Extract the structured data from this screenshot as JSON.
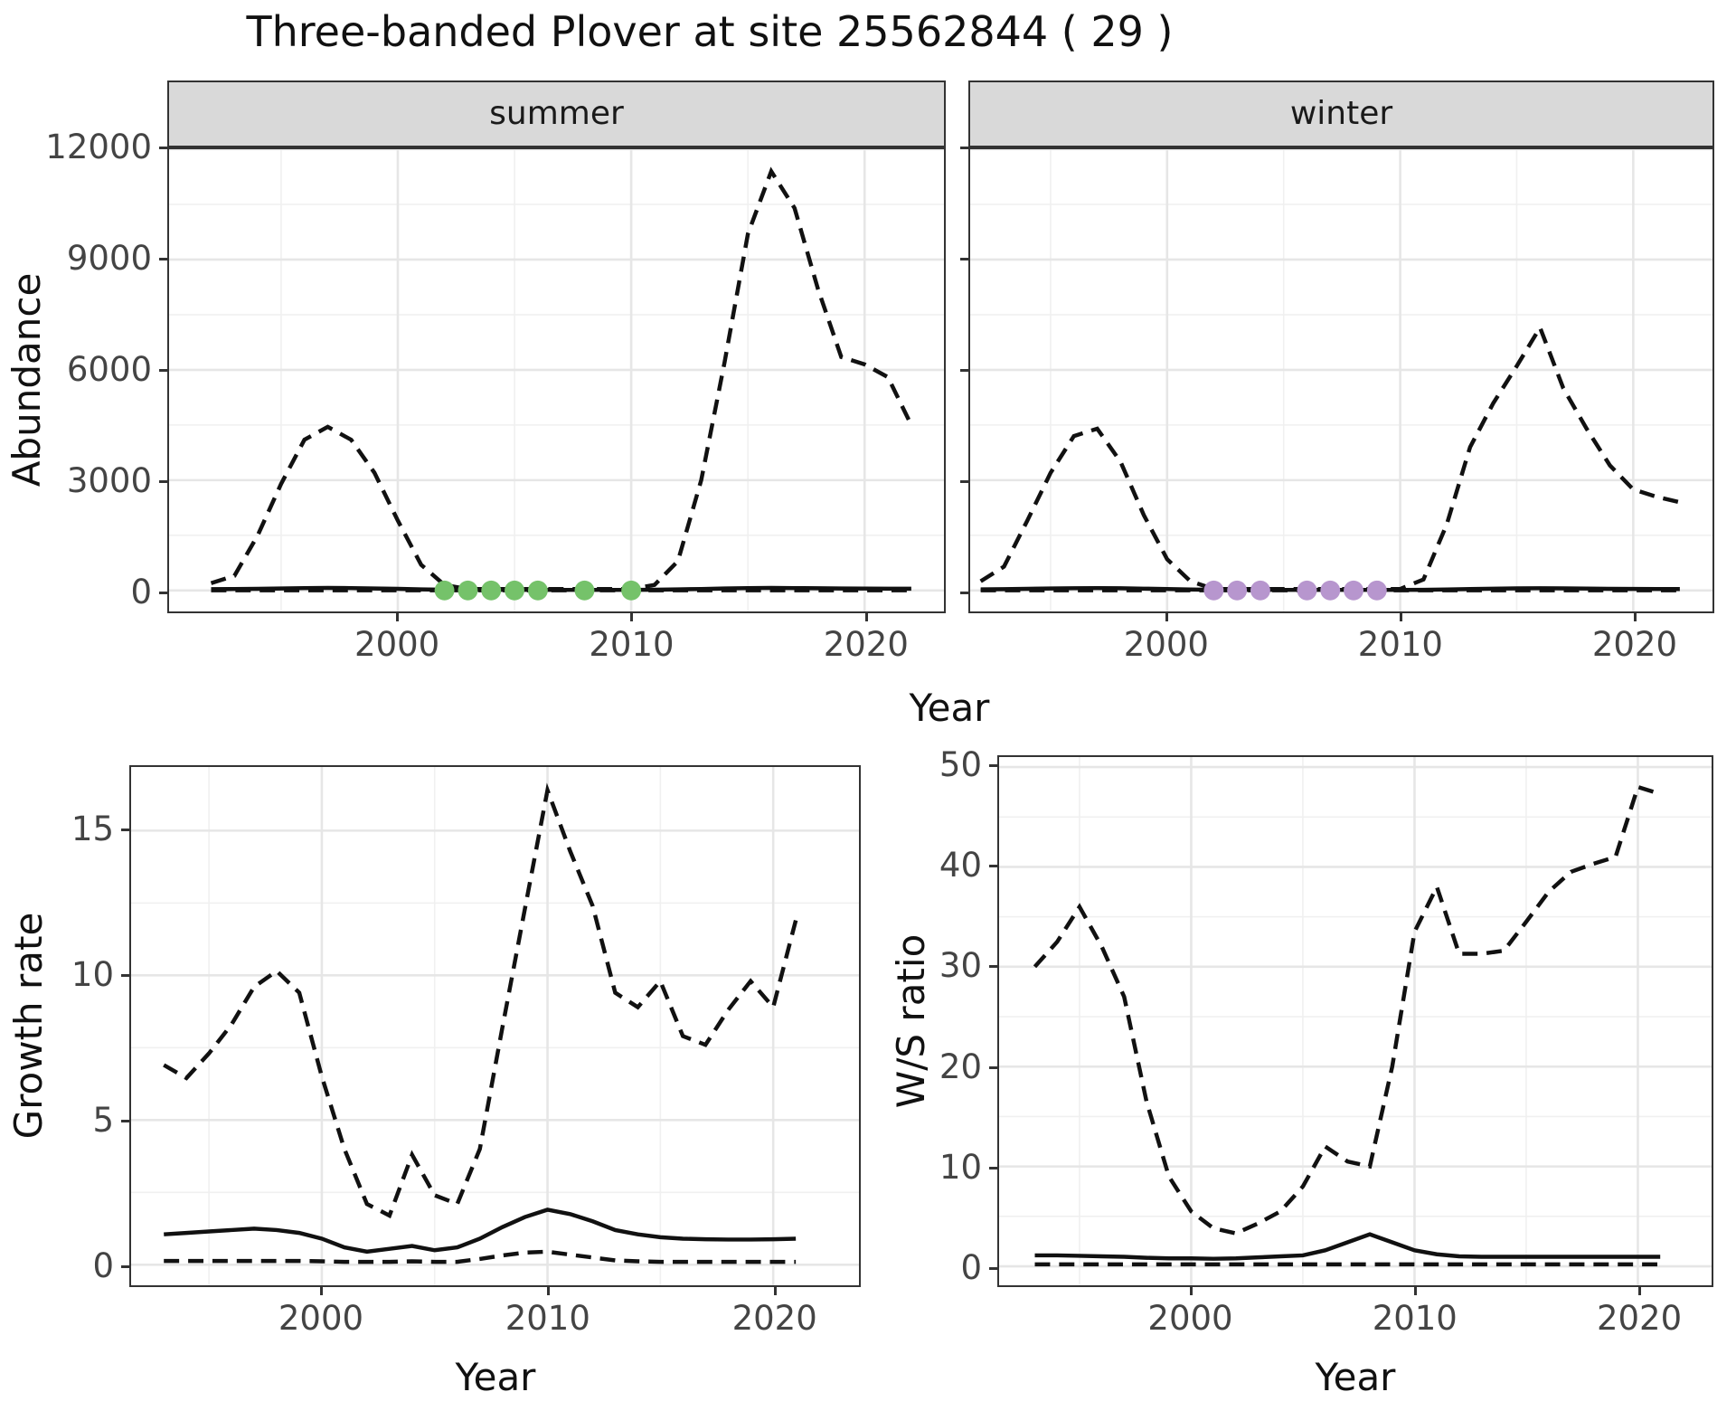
{
  "title": "Three-banded Plover at site 25562844 ( 29 )",
  "axis_labels": {
    "x": "Year",
    "y_abundance": "Abundance",
    "y_growth": "Growth rate",
    "y_ratio": "W/S ratio"
  },
  "facets": [
    {
      "label": "summer"
    },
    {
      "label": "winter"
    }
  ],
  "colors": {
    "summer_points": "#75C26A",
    "winter_points": "#B796CE",
    "line": "#111111",
    "grid_major": "#E6E6E6",
    "grid_minor": "#F0F0F0",
    "panel_border": "#333333",
    "strip_bg": "#D9D9D9",
    "axis_text": "#444444"
  },
  "chart_data": [
    {
      "type": "line",
      "name": "abundance-summer",
      "facet": "summer",
      "xlabel": "Year",
      "ylabel": "Abundance",
      "xlim": [
        1990.2,
        2023.4
      ],
      "ylim": [
        -570,
        12000
      ],
      "x_ticks": [
        2000,
        2010,
        2020
      ],
      "x_minor": [
        1995,
        2005,
        2015
      ],
      "y_ticks": [
        0,
        3000,
        6000,
        9000,
        12000
      ],
      "y_minor": [
        1500,
        4500,
        7500,
        10500
      ],
      "series": [
        {
          "name": "upper_ci",
          "style": "dashed",
          "x_start": 1992,
          "values": [
            200,
            400,
            1500,
            2900,
            4100,
            4450,
            4100,
            3200,
            1900,
            700,
            150,
            40,
            40,
            40,
            40,
            40,
            40,
            40,
            40,
            150,
            800,
            3000,
            6200,
            9700,
            11400,
            10400,
            8200,
            6350,
            6150,
            5800,
            4500
          ]
        },
        {
          "name": "median",
          "style": "solid",
          "x_start": 1992,
          "values": [
            35,
            40,
            45,
            55,
            65,
            70,
            65,
            55,
            45,
            30,
            20,
            15,
            15,
            15,
            15,
            15,
            15,
            15,
            15,
            20,
            30,
            40,
            55,
            65,
            70,
            65,
            60,
            55,
            52,
            50,
            48
          ]
        },
        {
          "name": "lower_ci",
          "style": "dashed",
          "x_start": 1992,
          "values": [
            5,
            5,
            5,
            5,
            5,
            5,
            5,
            5,
            5,
            5,
            5,
            5,
            5,
            5,
            5,
            5,
            5,
            5,
            5,
            5,
            5,
            5,
            5,
            5,
            5,
            5,
            5,
            5,
            5,
            5,
            5
          ]
        }
      ],
      "points": {
        "name": "summer-survey-counts",
        "years": [
          2002,
          2003,
          2004,
          2005,
          2006,
          2008,
          2010
        ],
        "value": 0,
        "color_key": "summer_points"
      }
    },
    {
      "type": "line",
      "name": "abundance-winter",
      "facet": "winter",
      "xlabel": "Year",
      "ylabel": "Abundance",
      "xlim": [
        1991.55,
        2023.4
      ],
      "ylim": [
        -570,
        12000
      ],
      "x_ticks": [
        2000,
        2010,
        2020
      ],
      "x_minor": [
        1995,
        2005,
        2015
      ],
      "y_ticks": [
        0,
        3000,
        6000,
        9000,
        12000
      ],
      "y_minor": [
        1500,
        4500,
        7500,
        10500
      ],
      "series": [
        {
          "name": "upper_ci",
          "style": "dashed",
          "x_start": 1992,
          "values": [
            250,
            650,
            1900,
            3200,
            4200,
            4400,
            3500,
            2050,
            850,
            250,
            40,
            40,
            40,
            40,
            40,
            40,
            40,
            40,
            40,
            300,
            1800,
            3900,
            5100,
            6100,
            7150,
            5500,
            4400,
            3400,
            2750,
            2550,
            2400
          ]
        },
        {
          "name": "median",
          "style": "solid",
          "x_start": 1992,
          "values": [
            30,
            35,
            45,
            55,
            62,
            65,
            60,
            50,
            40,
            25,
            18,
            15,
            15,
            15,
            15,
            15,
            15,
            15,
            15,
            18,
            28,
            38,
            50,
            58,
            62,
            58,
            52,
            46,
            42,
            40,
            38
          ]
        },
        {
          "name": "lower_ci",
          "style": "dashed",
          "x_start": 1992,
          "values": [
            5,
            5,
            5,
            5,
            5,
            5,
            5,
            5,
            5,
            5,
            5,
            5,
            5,
            5,
            5,
            5,
            5,
            5,
            5,
            5,
            5,
            5,
            5,
            5,
            5,
            5,
            5,
            5,
            5,
            5,
            5
          ]
        }
      ],
      "points": {
        "name": "winter-survey-counts",
        "years": [
          2002,
          2003,
          2004,
          2006,
          2007,
          2008,
          2009
        ],
        "value": 0,
        "color_key": "winter_points"
      }
    },
    {
      "type": "line",
      "name": "growth-rate",
      "xlabel": "Year",
      "ylabel": "Growth rate",
      "xlim": [
        1991.55,
        2023.8
      ],
      "ylim": [
        -0.71,
        17.2
      ],
      "x_ticks": [
        2000,
        2010,
        2020
      ],
      "x_minor": [
        1995,
        2005,
        2015
      ],
      "y_ticks": [
        0,
        5,
        10,
        15
      ],
      "y_minor": [
        2.5,
        7.5,
        12.5
      ],
      "series": [
        {
          "name": "upper_ci",
          "style": "dashed",
          "x_start": 1993,
          "values": [
            6.9,
            6.45,
            7.3,
            8.3,
            9.6,
            10.15,
            9.4,
            6.5,
            4.0,
            2.1,
            1.7,
            3.8,
            2.4,
            2.1,
            4.0,
            8.2,
            12.3,
            16.4,
            14.3,
            12.4,
            9.4,
            8.9,
            9.8,
            7.9,
            7.6,
            8.8,
            9.8,
            8.9,
            11.9
          ]
        },
        {
          "name": "median",
          "style": "solid",
          "x_start": 1993,
          "values": [
            1.05,
            1.1,
            1.15,
            1.2,
            1.25,
            1.2,
            1.1,
            0.9,
            0.6,
            0.45,
            0.55,
            0.65,
            0.5,
            0.6,
            0.9,
            1.3,
            1.65,
            1.9,
            1.75,
            1.5,
            1.2,
            1.05,
            0.95,
            0.9,
            0.88,
            0.87,
            0.87,
            0.88,
            0.9
          ]
        },
        {
          "name": "lower_ci",
          "style": "dashed",
          "x_start": 1993,
          "values": [
            0.13,
            0.13,
            0.13,
            0.13,
            0.13,
            0.13,
            0.13,
            0.12,
            0.1,
            0.1,
            0.1,
            0.12,
            0.1,
            0.1,
            0.2,
            0.32,
            0.42,
            0.45,
            0.35,
            0.25,
            0.15,
            0.12,
            0.1,
            0.1,
            0.1,
            0.1,
            0.1,
            0.1,
            0.1
          ]
        }
      ]
    },
    {
      "type": "line",
      "name": "ws-ratio",
      "xlabel": "Year",
      "ylabel": "W/S ratio",
      "xlim": [
        1991.4,
        2023.3
      ],
      "ylim": [
        -1.9,
        51.0
      ],
      "x_ticks": [
        2000,
        2010,
        2020
      ],
      "x_minor": [
        1995,
        2005,
        2015
      ],
      "y_ticks": [
        0,
        10,
        20,
        30,
        40,
        50
      ],
      "y_minor": [
        5,
        15,
        25,
        35,
        45
      ],
      "series": [
        {
          "name": "upper_ci",
          "style": "dashed",
          "x_start": 1993,
          "values": [
            30,
            32.5,
            36,
            32,
            27,
            16.5,
            9,
            5.5,
            3.8,
            3.3,
            4.3,
            5.5,
            8,
            12,
            10.5,
            10,
            20,
            33.5,
            38,
            31.3,
            31.3,
            31.6,
            34.5,
            37.5,
            39.5,
            40.3,
            41,
            48,
            47.3
          ]
        },
        {
          "name": "median",
          "style": "solid",
          "x_start": 1993,
          "values": [
            1.1,
            1.1,
            1.05,
            1.0,
            0.95,
            0.85,
            0.8,
            0.8,
            0.75,
            0.8,
            0.9,
            1.0,
            1.1,
            1.6,
            2.4,
            3.2,
            2.4,
            1.6,
            1.2,
            1.0,
            0.95,
            0.95,
            0.95,
            0.95,
            0.95,
            0.95,
            0.95,
            0.95,
            0.95
          ]
        },
        {
          "name": "lower_ci",
          "style": "dashed",
          "x_start": 1993,
          "values": [
            0.2,
            0.2,
            0.2,
            0.2,
            0.2,
            0.2,
            0.2,
            0.2,
            0.2,
            0.2,
            0.2,
            0.2,
            0.2,
            0.2,
            0.2,
            0.2,
            0.2,
            0.2,
            0.2,
            0.2,
            0.2,
            0.2,
            0.2,
            0.2,
            0.2,
            0.2,
            0.2,
            0.2,
            0.2
          ]
        }
      ]
    }
  ]
}
